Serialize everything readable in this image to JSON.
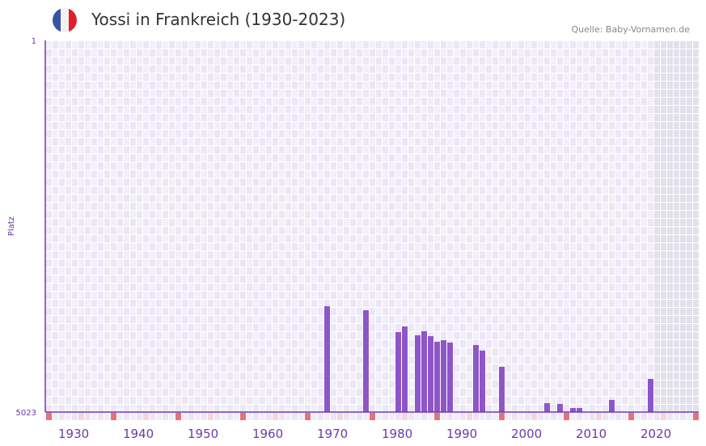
{
  "header": {
    "title": "Yossi in Frankreich (1930-2023)",
    "source": "Quelle: Baby-Vornamen.de"
  },
  "colors": {
    "bar": "#8e55c8",
    "axis": "#6a3aa8",
    "grid": "#efeaf8",
    "marker": "#e87179",
    "marker_light": "#f3d6de",
    "future": "#e3e0ec",
    "flag_blue": "#3a54a4",
    "flag_white": "#f2f2f2",
    "flag_red": "#e21e2b"
  },
  "chart_data": {
    "type": "bar",
    "title": "Yossi in Frankreich (1930-2023)",
    "ylabel": "Platz",
    "y_tick_labels": [
      "1",
      "5023"
    ],
    "ylim": [
      1,
      5023
    ],
    "y_inverted": true,
    "xlim": [
      1928,
      2028
    ],
    "x_tick_labels": [
      "1930",
      "1940",
      "1950",
      "1960",
      "1970",
      "1980",
      "1990",
      "2000",
      "2010",
      "2020"
    ],
    "x_ticks": [
      1930,
      1940,
      1950,
      1960,
      1970,
      1980,
      1990,
      2000,
      2010,
      2020
    ],
    "future_from": 2022,
    "years": [
      1971,
      1977,
      1982,
      1983,
      1985,
      1986,
      1987,
      1988,
      1989,
      1990,
      1994,
      1995,
      1998,
      2005,
      2007,
      2009,
      2010,
      2015,
      2021
    ],
    "ranks": [
      3593,
      3647,
      3942,
      3866,
      3986,
      3931,
      3997,
      4073,
      4051,
      4084,
      4117,
      4193,
      4411,
      4903,
      4914,
      4968,
      4968,
      4859,
      4575
    ]
  }
}
